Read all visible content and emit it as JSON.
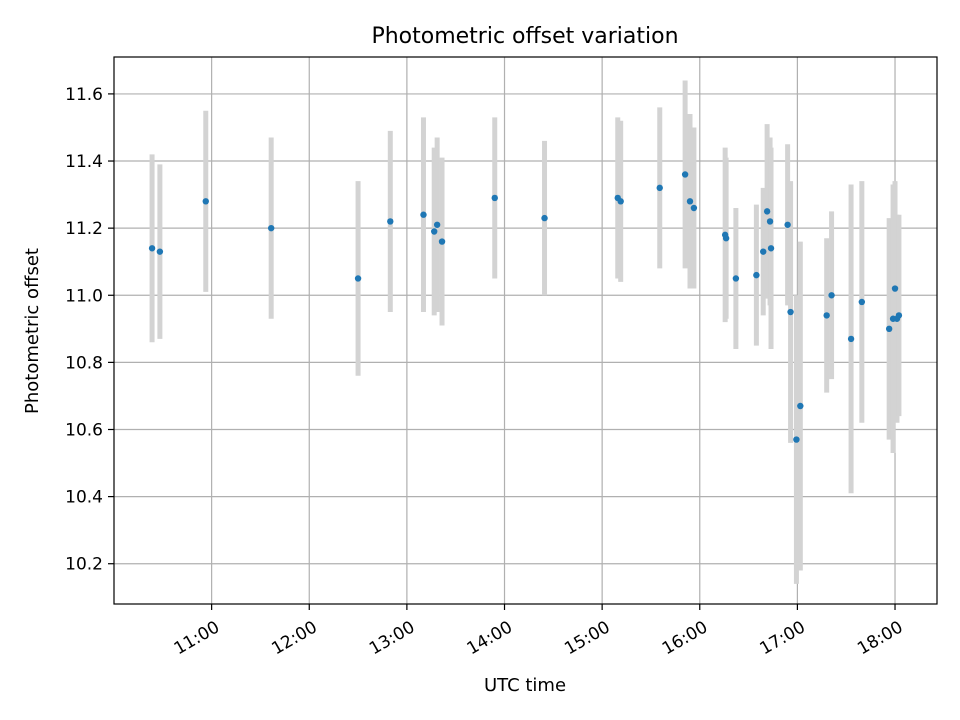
{
  "chart_data": {
    "type": "scatter",
    "title": "Photometric offset variation",
    "xlabel": "UTC time",
    "ylabel": "Photometric offset",
    "x_unit": "UTC hour",
    "xlim": [
      10.0,
      18.43
    ],
    "ylim": [
      10.08,
      11.71
    ],
    "x_ticks": [
      {
        "value": 11,
        "label": "11:00"
      },
      {
        "value": 12,
        "label": "12:00"
      },
      {
        "value": 13,
        "label": "13:00"
      },
      {
        "value": 14,
        "label": "14:00"
      },
      {
        "value": 15,
        "label": "15:00"
      },
      {
        "value": 16,
        "label": "16:00"
      },
      {
        "value": 17,
        "label": "17:00"
      },
      {
        "value": 18,
        "label": "18:00"
      }
    ],
    "y_ticks": [
      {
        "value": 10.2,
        "label": "10.2"
      },
      {
        "value": 10.4,
        "label": "10.4"
      },
      {
        "value": 10.6,
        "label": "10.6"
      },
      {
        "value": 10.8,
        "label": "10.8"
      },
      {
        "value": 11.0,
        "label": "11.0"
      },
      {
        "value": 11.2,
        "label": "11.2"
      },
      {
        "value": 11.4,
        "label": "11.4"
      },
      {
        "value": 11.6,
        "label": "11.6"
      }
    ],
    "grid": true,
    "marker_color": "#1f77b4",
    "errorbar_color": "#d3d3d3",
    "points": [
      {
        "x": 10.39,
        "y": 11.14,
        "err": 0.28
      },
      {
        "x": 10.47,
        "y": 11.13,
        "err": 0.26
      },
      {
        "x": 10.94,
        "y": 11.28,
        "err": 0.27
      },
      {
        "x": 11.61,
        "y": 11.2,
        "err": 0.27
      },
      {
        "x": 12.5,
        "y": 11.05,
        "err": 0.29
      },
      {
        "x": 12.83,
        "y": 11.22,
        "err": 0.27
      },
      {
        "x": 13.17,
        "y": 11.24,
        "err": 0.29
      },
      {
        "x": 13.28,
        "y": 11.19,
        "err": 0.25
      },
      {
        "x": 13.31,
        "y": 11.21,
        "err": 0.26
      },
      {
        "x": 13.36,
        "y": 11.16,
        "err": 0.25
      },
      {
        "x": 13.9,
        "y": 11.29,
        "err": 0.24
      },
      {
        "x": 14.41,
        "y": 11.23,
        "err": 0.23
      },
      {
        "x": 15.16,
        "y": 11.29,
        "err": 0.24
      },
      {
        "x": 15.19,
        "y": 11.28,
        "err": 0.24
      },
      {
        "x": 15.59,
        "y": 11.32,
        "err": 0.24
      },
      {
        "x": 15.85,
        "y": 11.36,
        "err": 0.28
      },
      {
        "x": 15.9,
        "y": 11.28,
        "err": 0.26
      },
      {
        "x": 15.94,
        "y": 11.26,
        "err": 0.24
      },
      {
        "x": 16.26,
        "y": 11.18,
        "err": 0.26
      },
      {
        "x": 16.27,
        "y": 11.17,
        "err": 0.24
      },
      {
        "x": 16.37,
        "y": 11.05,
        "err": 0.21
      },
      {
        "x": 16.58,
        "y": 11.06,
        "err": 0.21
      },
      {
        "x": 16.65,
        "y": 11.13,
        "err": 0.19
      },
      {
        "x": 16.69,
        "y": 11.25,
        "err": 0.26
      },
      {
        "x": 16.72,
        "y": 11.22,
        "err": 0.25
      },
      {
        "x": 16.73,
        "y": 11.14,
        "err": 0.3
      },
      {
        "x": 16.9,
        "y": 11.21,
        "err": 0.24
      },
      {
        "x": 16.93,
        "y": 10.95,
        "err": 0.39
      },
      {
        "x": 16.99,
        "y": 10.57,
        "err": 0.43
      },
      {
        "x": 17.03,
        "y": 10.67,
        "err": 0.49
      },
      {
        "x": 17.3,
        "y": 10.94,
        "err": 0.23
      },
      {
        "x": 17.35,
        "y": 11.0,
        "err": 0.25
      },
      {
        "x": 17.55,
        "y": 10.87,
        "err": 0.46
      },
      {
        "x": 17.66,
        "y": 10.98,
        "err": 0.36
      },
      {
        "x": 17.94,
        "y": 10.9,
        "err": 0.33
      },
      {
        "x": 17.98,
        "y": 10.93,
        "err": 0.4
      },
      {
        "x": 18.0,
        "y": 11.02,
        "err": 0.32
      },
      {
        "x": 18.02,
        "y": 10.93,
        "err": 0.31
      },
      {
        "x": 18.04,
        "y": 10.94,
        "err": 0.3
      }
    ]
  }
}
